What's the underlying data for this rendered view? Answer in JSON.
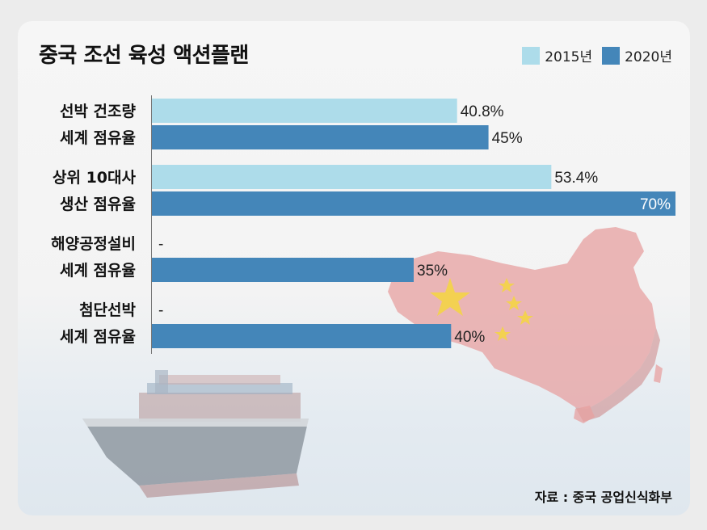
{
  "title": "중국 조선 육성 액션플랜",
  "source": "자료 : 중국 공업신식화부",
  "colors": {
    "s2015": "#addcea",
    "s2020": "#4486b9",
    "map": "#e46f6f",
    "star": "#f5d33d"
  },
  "chart_data": {
    "type": "bar",
    "orientation": "horizontal",
    "title": "중국 조선 육성 액션플랜",
    "categories": [
      [
        "선박 건조량",
        "세계 점유율"
      ],
      [
        "상위 10대사",
        "생산 점유율"
      ],
      [
        "해양공정설비",
        "세계 점유율"
      ],
      [
        "첨단선박",
        "세계 점유율"
      ]
    ],
    "xlim": [
      0,
      70
    ],
    "legend_position": "top-right",
    "grid": false,
    "series": [
      {
        "name": "2015년",
        "values": [
          40.8,
          53.4,
          null,
          null
        ],
        "labels": [
          "40.8%",
          "53.4%",
          "-",
          "-"
        ]
      },
      {
        "name": "2020년",
        "values": [
          45,
          70,
          35,
          40
        ],
        "labels": [
          "45%",
          "70%",
          "35%",
          "40%"
        ]
      }
    ]
  }
}
